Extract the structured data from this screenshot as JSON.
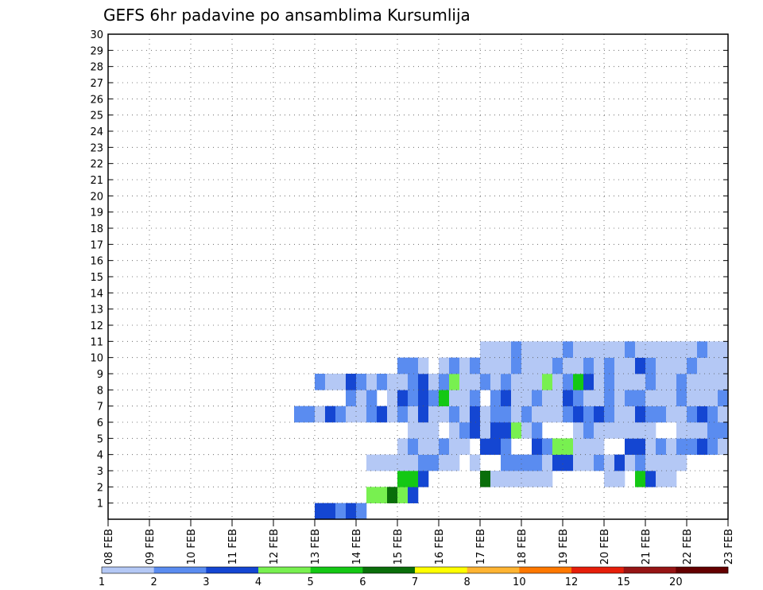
{
  "chart_data": {
    "type": "heatmap",
    "title": "GEFS 6hr padavine po ansamblima Kursumlija",
    "x_labels": [
      "08 FEB",
      "09 FEB",
      "10 FEB",
      "11 FEB",
      "12 FEB",
      "13 FEB",
      "14 FEB",
      "15 FEB",
      "16 FEB",
      "17 FEB",
      "18 FEB",
      "19 FEB",
      "20 FEB",
      "21 FEB",
      "22 FEB",
      "23 FEB"
    ],
    "y_labels": [
      "1",
      "2",
      "3",
      "4",
      "5",
      "6",
      "7",
      "8",
      "9",
      "10",
      "11",
      "12",
      "13",
      "14",
      "15",
      "16",
      "17",
      "18",
      "19",
      "20",
      "21",
      "22",
      "23",
      "24",
      "25",
      "26",
      "27",
      "28",
      "29",
      "30"
    ],
    "x_range": [
      0,
      60
    ],
    "y_range": [
      0,
      30
    ],
    "levels": [
      "1",
      "2",
      "3",
      "4",
      "5",
      "6",
      "7",
      "8",
      "10",
      "12",
      "15",
      "20"
    ],
    "colors": [
      "#b4c8f5",
      "#5a8cf0",
      "#1446d2",
      "#78f050",
      "#14c814",
      "#0a6e0a",
      "#ffff00",
      "#ffb432",
      "#ff7800",
      "#e61e0a",
      "#961414",
      "#640000"
    ],
    "cells": [
      [
        20,
        0,
        2
      ],
      [
        21,
        0,
        2
      ],
      [
        22,
        0,
        1
      ],
      [
        23,
        0,
        2
      ],
      [
        24,
        0,
        1
      ],
      [
        25,
        1,
        3
      ],
      [
        26,
        1,
        3
      ],
      [
        27,
        1,
        5
      ],
      [
        28,
        1,
        3
      ],
      [
        29,
        1,
        2
      ],
      [
        28,
        2,
        4
      ],
      [
        29,
        2,
        4
      ],
      [
        30,
        2,
        2
      ],
      [
        36,
        2,
        5
      ],
      [
        37,
        2,
        0
      ],
      [
        38,
        2,
        0
      ],
      [
        39,
        2,
        0
      ],
      [
        40,
        2,
        0
      ],
      [
        41,
        2,
        0
      ],
      [
        42,
        2,
        0
      ],
      [
        48,
        2,
        0
      ],
      [
        49,
        2,
        0
      ],
      [
        51,
        2,
        4
      ],
      [
        52,
        2,
        2
      ],
      [
        53,
        2,
        0
      ],
      [
        54,
        2,
        0
      ],
      [
        25,
        3,
        0
      ],
      [
        26,
        3,
        0
      ],
      [
        27,
        3,
        0
      ],
      [
        28,
        3,
        0
      ],
      [
        29,
        3,
        0
      ],
      [
        30,
        3,
        1
      ],
      [
        31,
        3,
        1
      ],
      [
        32,
        3,
        0
      ],
      [
        33,
        3,
        0
      ],
      [
        35,
        3,
        0
      ],
      [
        38,
        3,
        1
      ],
      [
        39,
        3,
        1
      ],
      [
        40,
        3,
        1
      ],
      [
        41,
        3,
        1
      ],
      [
        42,
        3,
        0
      ],
      [
        43,
        3,
        2
      ],
      [
        44,
        3,
        2
      ],
      [
        45,
        3,
        0
      ],
      [
        46,
        3,
        0
      ],
      [
        47,
        3,
        1
      ],
      [
        48,
        3,
        0
      ],
      [
        49,
        3,
        2
      ],
      [
        50,
        3,
        0
      ],
      [
        51,
        3,
        1
      ],
      [
        52,
        3,
        0
      ],
      [
        53,
        3,
        0
      ],
      [
        54,
        3,
        0
      ],
      [
        55,
        3,
        0
      ],
      [
        28,
        4,
        0
      ],
      [
        29,
        4,
        1
      ],
      [
        30,
        4,
        0
      ],
      [
        31,
        4,
        0
      ],
      [
        32,
        4,
        1
      ],
      [
        33,
        4,
        0
      ],
      [
        34,
        4,
        0
      ],
      [
        36,
        4,
        2
      ],
      [
        37,
        4,
        2
      ],
      [
        38,
        4,
        1
      ],
      [
        41,
        4,
        2
      ],
      [
        42,
        4,
        1
      ],
      [
        43,
        4,
        3
      ],
      [
        44,
        4,
        3
      ],
      [
        45,
        4,
        0
      ],
      [
        46,
        4,
        0
      ],
      [
        47,
        4,
        0
      ],
      [
        50,
        4,
        2
      ],
      [
        51,
        4,
        2
      ],
      [
        52,
        4,
        0
      ],
      [
        53,
        4,
        1
      ],
      [
        54,
        4,
        0
      ],
      [
        55,
        4,
        1
      ],
      [
        56,
        4,
        1
      ],
      [
        57,
        4,
        2
      ],
      [
        58,
        4,
        1
      ],
      [
        59,
        4,
        0
      ],
      [
        29,
        5,
        0
      ],
      [
        30,
        5,
        0
      ],
      [
        31,
        5,
        0
      ],
      [
        33,
        5,
        0
      ],
      [
        34,
        5,
        1
      ],
      [
        35,
        5,
        2
      ],
      [
        36,
        5,
        0
      ],
      [
        37,
        5,
        2
      ],
      [
        38,
        5,
        2
      ],
      [
        39,
        5,
        3
      ],
      [
        40,
        5,
        0
      ],
      [
        41,
        5,
        1
      ],
      [
        45,
        5,
        0
      ],
      [
        46,
        5,
        1
      ],
      [
        47,
        5,
        0
      ],
      [
        48,
        5,
        0
      ],
      [
        49,
        5,
        0
      ],
      [
        50,
        5,
        0
      ],
      [
        51,
        5,
        0
      ],
      [
        52,
        5,
        0
      ],
      [
        55,
        5,
        0
      ],
      [
        56,
        5,
        0
      ],
      [
        57,
        5,
        0
      ],
      [
        58,
        5,
        1
      ],
      [
        59,
        5,
        1
      ],
      [
        18,
        6,
        1
      ],
      [
        19,
        6,
        1
      ],
      [
        20,
        6,
        0
      ],
      [
        21,
        6,
        2
      ],
      [
        22,
        6,
        1
      ],
      [
        23,
        6,
        0
      ],
      [
        24,
        6,
        0
      ],
      [
        25,
        6,
        1
      ],
      [
        26,
        6,
        2
      ],
      [
        27,
        6,
        0
      ],
      [
        28,
        6,
        1
      ],
      [
        29,
        6,
        0
      ],
      [
        30,
        6,
        2
      ],
      [
        31,
        6,
        0
      ],
      [
        32,
        6,
        0
      ],
      [
        33,
        6,
        1
      ],
      [
        34,
        6,
        0
      ],
      [
        35,
        6,
        2
      ],
      [
        36,
        6,
        0
      ],
      [
        37,
        6,
        1
      ],
      [
        38,
        6,
        1
      ],
      [
        39,
        6,
        0
      ],
      [
        40,
        6,
        1
      ],
      [
        41,
        6,
        0
      ],
      [
        42,
        6,
        0
      ],
      [
        43,
        6,
        0
      ],
      [
        44,
        6,
        1
      ],
      [
        45,
        6,
        2
      ],
      [
        46,
        6,
        1
      ],
      [
        47,
        6,
        2
      ],
      [
        48,
        6,
        1
      ],
      [
        49,
        6,
        0
      ],
      [
        50,
        6,
        0
      ],
      [
        51,
        6,
        2
      ],
      [
        52,
        6,
        1
      ],
      [
        53,
        6,
        1
      ],
      [
        54,
        6,
        0
      ],
      [
        55,
        6,
        0
      ],
      [
        56,
        6,
        1
      ],
      [
        57,
        6,
        2
      ],
      [
        58,
        6,
        1
      ],
      [
        59,
        6,
        0
      ],
      [
        23,
        7,
        1
      ],
      [
        24,
        7,
        0
      ],
      [
        25,
        7,
        1
      ],
      [
        27,
        7,
        0
      ],
      [
        28,
        7,
        2
      ],
      [
        29,
        7,
        1
      ],
      [
        30,
        7,
        2
      ],
      [
        31,
        7,
        1
      ],
      [
        32,
        7,
        4
      ],
      [
        33,
        7,
        0
      ],
      [
        34,
        7,
        0
      ],
      [
        35,
        7,
        1
      ],
      [
        37,
        7,
        1
      ],
      [
        38,
        7,
        2
      ],
      [
        39,
        7,
        0
      ],
      [
        40,
        7,
        0
      ],
      [
        41,
        7,
        1
      ],
      [
        42,
        7,
        0
      ],
      [
        43,
        7,
        0
      ],
      [
        44,
        7,
        2
      ],
      [
        45,
        7,
        1
      ],
      [
        46,
        7,
        0
      ],
      [
        47,
        7,
        0
      ],
      [
        48,
        7,
        1
      ],
      [
        49,
        7,
        0
      ],
      [
        50,
        7,
        1
      ],
      [
        51,
        7,
        1
      ],
      [
        52,
        7,
        0
      ],
      [
        53,
        7,
        0
      ],
      [
        54,
        7,
        0
      ],
      [
        55,
        7,
        1
      ],
      [
        56,
        7,
        0
      ],
      [
        57,
        7,
        0
      ],
      [
        58,
        7,
        0
      ],
      [
        59,
        7,
        1
      ],
      [
        20,
        8,
        1
      ],
      [
        21,
        8,
        0
      ],
      [
        22,
        8,
        0
      ],
      [
        23,
        8,
        2
      ],
      [
        24,
        8,
        1
      ],
      [
        25,
        8,
        0
      ],
      [
        26,
        8,
        1
      ],
      [
        27,
        8,
        0
      ],
      [
        28,
        8,
        0
      ],
      [
        29,
        8,
        1
      ],
      [
        30,
        8,
        2
      ],
      [
        31,
        8,
        0
      ],
      [
        32,
        8,
        1
      ],
      [
        33,
        8,
        3
      ],
      [
        34,
        8,
        0
      ],
      [
        35,
        8,
        0
      ],
      [
        36,
        8,
        1
      ],
      [
        37,
        8,
        0
      ],
      [
        38,
        8,
        1
      ],
      [
        39,
        8,
        0
      ],
      [
        40,
        8,
        0
      ],
      [
        41,
        8,
        0
      ],
      [
        42,
        8,
        3
      ],
      [
        43,
        8,
        0
      ],
      [
        44,
        8,
        1
      ],
      [
        45,
        8,
        4
      ],
      [
        46,
        8,
        2
      ],
      [
        47,
        8,
        0
      ],
      [
        48,
        8,
        1
      ],
      [
        49,
        8,
        0
      ],
      [
        50,
        8,
        0
      ],
      [
        51,
        8,
        0
      ],
      [
        52,
        8,
        1
      ],
      [
        53,
        8,
        0
      ],
      [
        54,
        8,
        0
      ],
      [
        55,
        8,
        1
      ],
      [
        56,
        8,
        0
      ],
      [
        57,
        8,
        0
      ],
      [
        58,
        8,
        0
      ],
      [
        59,
        8,
        0
      ],
      [
        28,
        9,
        1
      ],
      [
        29,
        9,
        1
      ],
      [
        30,
        9,
        0
      ],
      [
        32,
        9,
        0
      ],
      [
        33,
        9,
        1
      ],
      [
        34,
        9,
        0
      ],
      [
        35,
        9,
        1
      ],
      [
        36,
        9,
        0
      ],
      [
        37,
        9,
        0
      ],
      [
        38,
        9,
        0
      ],
      [
        39,
        9,
        1
      ],
      [
        40,
        9,
        0
      ],
      [
        41,
        9,
        0
      ],
      [
        42,
        9,
        0
      ],
      [
        43,
        9,
        1
      ],
      [
        44,
        9,
        0
      ],
      [
        45,
        9,
        0
      ],
      [
        46,
        9,
        1
      ],
      [
        47,
        9,
        0
      ],
      [
        48,
        9,
        1
      ],
      [
        49,
        9,
        0
      ],
      [
        50,
        9,
        0
      ],
      [
        51,
        9,
        2
      ],
      [
        52,
        9,
        1
      ],
      [
        53,
        9,
        0
      ],
      [
        54,
        9,
        0
      ],
      [
        55,
        9,
        0
      ],
      [
        56,
        9,
        1
      ],
      [
        57,
        9,
        0
      ],
      [
        58,
        9,
        0
      ],
      [
        59,
        9,
        0
      ],
      [
        36,
        10,
        0
      ],
      [
        37,
        10,
        0
      ],
      [
        38,
        10,
        0
      ],
      [
        39,
        10,
        1
      ],
      [
        40,
        10,
        0
      ],
      [
        41,
        10,
        0
      ],
      [
        42,
        10,
        0
      ],
      [
        43,
        10,
        0
      ],
      [
        44,
        10,
        1
      ],
      [
        45,
        10,
        0
      ],
      [
        46,
        10,
        0
      ],
      [
        47,
        10,
        0
      ],
      [
        48,
        10,
        0
      ],
      [
        49,
        10,
        0
      ],
      [
        50,
        10,
        1
      ],
      [
        51,
        10,
        0
      ],
      [
        52,
        10,
        0
      ],
      [
        53,
        10,
        0
      ],
      [
        54,
        10,
        0
      ],
      [
        55,
        10,
        0
      ],
      [
        56,
        10,
        0
      ],
      [
        57,
        10,
        1
      ],
      [
        58,
        10,
        0
      ],
      [
        59,
        10,
        0
      ]
    ],
    "colorbar_labels": [
      "1",
      "2",
      "3",
      "4",
      "5",
      "6",
      "7",
      "8",
      "10",
      "12",
      "15",
      "20"
    ]
  }
}
